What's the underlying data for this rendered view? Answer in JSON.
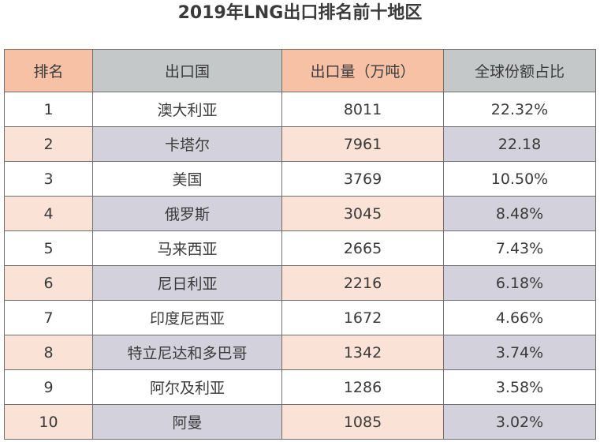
{
  "title": "2019年LNG出口排名前十地区",
  "headers": [
    "排名",
    "出口国",
    "出口量（万吨）",
    "全球份额占比"
  ],
  "rows": [
    {
      "rank": "1",
      "country": "澳大利亚",
      "volume": "8011",
      "share": "22.32%"
    },
    {
      "rank": "2",
      "country": "卡塔尔",
      "volume": "7961",
      "share": "22.18"
    },
    {
      "rank": "3",
      "country": "美国",
      "volume": "3769",
      "share": "10.50%"
    },
    {
      "rank": "4",
      "country": "俄罗斯",
      "volume": "3045",
      "share": "8.48%"
    },
    {
      "rank": "5",
      "country": "马来西亚",
      "volume": "2665",
      "share": "7.43%"
    },
    {
      "rank": "6",
      "country": "尼日利亚",
      "volume": "2216",
      "share": "6.18%"
    },
    {
      "rank": "7",
      "country": "印度尼西亚",
      "volume": "1672",
      "share": "4.66%"
    },
    {
      "rank": "8",
      "country": "特立尼达和多巴哥",
      "volume": "1342",
      "share": "3.74%"
    },
    {
      "rank": "9",
      "country": "阿尔及利亚",
      "volume": "1286",
      "share": "3.58%"
    },
    {
      "rank": "10",
      "country": "阿曼",
      "volume": "1085",
      "share": "3.02%"
    }
  ],
  "colors": {
    "header_rank": "#f7c1a6",
    "header_country": "#c4c8c8",
    "header_volume": "#f7c1a6",
    "header_share": "#c4c8c8",
    "alt_row_pink": "#fbe2d6",
    "alt_row_grey": "#d3d1db",
    "border": "#6f6f6f"
  }
}
